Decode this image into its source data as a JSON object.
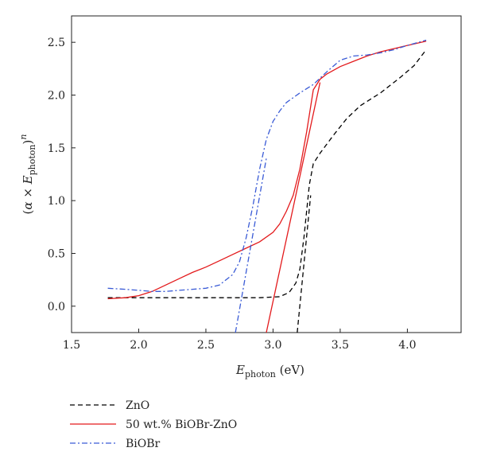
{
  "chart_data": {
    "type": "line",
    "xlabel": "E_photon (eV)",
    "ylabel": "(α × E_photon)^n",
    "xlim": [
      1.5,
      4.4
    ],
    "ylim": [
      -0.25,
      2.75
    ],
    "xticks": [
      "1.5",
      "2.0",
      "2.5",
      "3.0",
      "3.5",
      "4.0"
    ],
    "yticks": [
      "0.0",
      "0.5",
      "1.0",
      "1.5",
      "2.0",
      "2.5"
    ],
    "grid": false,
    "legend_position": "below-left",
    "series": [
      {
        "name": "ZnO",
        "color": "#000000",
        "style": "dashed",
        "x": [
          1.77,
          2.0,
          2.5,
          2.9,
          3.05,
          3.12,
          3.17,
          3.2,
          3.23,
          3.27,
          3.3,
          3.35,
          3.45,
          3.55,
          3.65,
          3.8,
          3.95,
          4.05,
          4.14
        ],
        "y": [
          0.08,
          0.08,
          0.08,
          0.08,
          0.09,
          0.13,
          0.22,
          0.35,
          0.65,
          1.15,
          1.35,
          1.45,
          1.62,
          1.78,
          1.9,
          2.02,
          2.17,
          2.28,
          2.43
        ]
      },
      {
        "name": "50 wt.% BiOBr-ZnO",
        "color": "#e31a1c",
        "style": "solid",
        "x": [
          1.77,
          1.9,
          2.0,
          2.1,
          2.2,
          2.3,
          2.4,
          2.5,
          2.6,
          2.7,
          2.8,
          2.9,
          3.0,
          3.05,
          3.1,
          3.15,
          3.2,
          3.25,
          3.3,
          3.35,
          3.4,
          3.5,
          3.6,
          3.7,
          3.8,
          3.9,
          4.0,
          4.14
        ],
        "y": [
          0.07,
          0.08,
          0.1,
          0.14,
          0.2,
          0.26,
          0.32,
          0.37,
          0.43,
          0.49,
          0.55,
          0.61,
          0.7,
          0.78,
          0.9,
          1.05,
          1.3,
          1.65,
          2.05,
          2.15,
          2.2,
          2.27,
          2.32,
          2.37,
          2.41,
          2.44,
          2.47,
          2.51
        ]
      },
      {
        "name": "BiOBr",
        "color": "#3a5bd6",
        "style": "dashdot",
        "x": [
          1.77,
          1.9,
          2.0,
          2.1,
          2.2,
          2.3,
          2.4,
          2.5,
          2.6,
          2.7,
          2.75,
          2.8,
          2.85,
          2.9,
          2.95,
          3.0,
          3.05,
          3.1,
          3.2,
          3.3,
          3.4,
          3.5,
          3.6,
          3.7,
          3.8,
          3.9,
          4.0,
          4.14
        ],
        "y": [
          0.17,
          0.16,
          0.15,
          0.14,
          0.14,
          0.15,
          0.16,
          0.17,
          0.2,
          0.3,
          0.42,
          0.65,
          0.95,
          1.3,
          1.58,
          1.75,
          1.85,
          1.93,
          2.02,
          2.1,
          2.22,
          2.33,
          2.37,
          2.38,
          2.4,
          2.43,
          2.47,
          2.52
        ]
      }
    ],
    "fit_lines": [
      {
        "series": "ZnO",
        "color": "#000000",
        "style": "dashed",
        "x": [
          3.18,
          3.28
        ],
        "y": [
          -0.25,
          1.05
        ]
      },
      {
        "series": "50 wt.% BiOBr-ZnO",
        "color": "#e31a1c",
        "style": "solid",
        "x": [
          2.95,
          3.35
        ],
        "y": [
          -0.25,
          2.12
        ]
      },
      {
        "series": "BiOBr",
        "color": "#3a5bd6",
        "style": "dashdot",
        "x": [
          2.72,
          2.95
        ],
        "y": [
          -0.25,
          1.4
        ]
      }
    ]
  }
}
